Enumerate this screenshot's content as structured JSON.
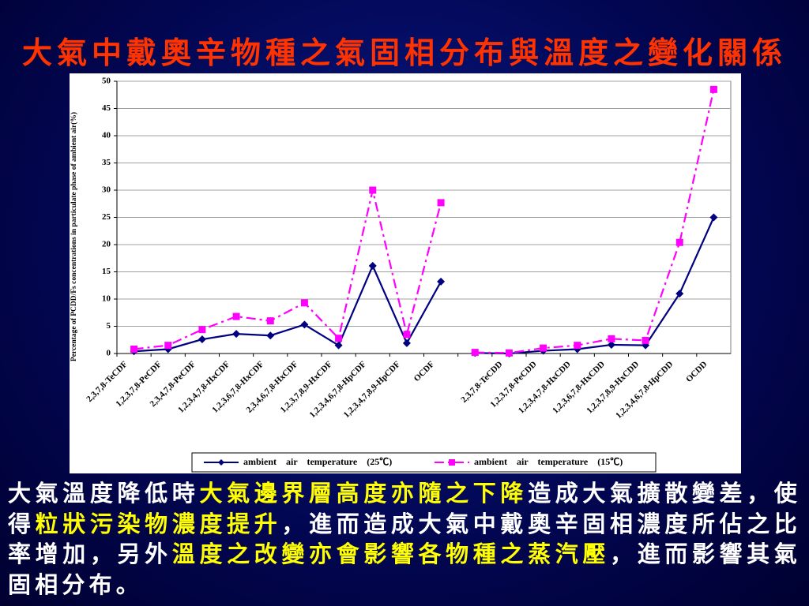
{
  "title": "大氣中戴奧辛物種之氣固相分布與溫度之變化關係",
  "chart_data": {
    "type": "line",
    "ylabel": "Percentage of PCDD/Fs concentrations in particulate phase of ambient air(%)",
    "categories": [
      "2,3,7,8-TeCDF",
      "1,2,3,7,8-PeCDF",
      "2,3,4,7,8-PeCDF",
      "1,2,3,4,7,8-HxCDF",
      "1,2,3,6,7,8-HxCDF",
      "2,3,4,6,7,8-HxCDF",
      "1,2,3,7,8,9-HxCDF",
      "1,2,3,4,6,7,8-HpCDF",
      "1,2,3,4,7,8,9-HpCDF",
      "OCDF",
      null,
      "2,3,7,8-TeCDD",
      "1,2,3,7,8-PeCDD",
      "1,2,3,4,7,8-HxCDD",
      "1,2,3,6,7,8-HxCDD",
      "1,2,3,7,8,9-HxCDD",
      "1,2,3,4,6,7,8-HpCDD",
      "OCDD"
    ],
    "series": [
      {
        "name": "ambient　air　temperature　(25℃)",
        "color": "#000080",
        "marker": "diamond",
        "dash": "solid",
        "values": [
          0.4,
          0.8,
          2.6,
          3.6,
          3.3,
          5.3,
          1.5,
          16.1,
          1.9,
          13.2,
          0.1,
          0.0,
          0.5,
          0.8,
          1.6,
          1.5,
          11.0,
          25.0
        ]
      },
      {
        "name": "ambient　air　temperature　(15℃)",
        "color": "#ff00ff",
        "marker": "square",
        "dash": "dashdot",
        "values": [
          0.8,
          1.5,
          4.4,
          6.8,
          6.0,
          9.3,
          2.8,
          30.0,
          3.5,
          27.7,
          0.2,
          0.1,
          1.0,
          1.5,
          2.7,
          2.4,
          20.4,
          48.5
        ]
      }
    ],
    "ylim": [
      0,
      50
    ],
    "yticks": [
      0,
      5,
      10,
      15,
      20,
      25,
      30,
      35,
      40,
      45,
      50
    ],
    "grid": true,
    "legend": "bottom"
  },
  "paragraph": {
    "segments": [
      {
        "text": "大氣溫度降低時",
        "highlight": false
      },
      {
        "text": "大氣邊界層高度亦隨之下降",
        "highlight": true
      },
      {
        "text": "造成大氣擴散變差，使得",
        "highlight": false
      },
      {
        "text": "粒狀污染物濃度提升",
        "highlight": true
      },
      {
        "text": "，進而造成大氣中戴奧辛固相濃度所佔之比率增加，另外",
        "highlight": false
      },
      {
        "text": "溫度之改變亦會影響各物種之蒸汽壓",
        "highlight": true
      },
      {
        "text": "，進而影響其氣固相分布。",
        "highlight": false
      }
    ]
  }
}
